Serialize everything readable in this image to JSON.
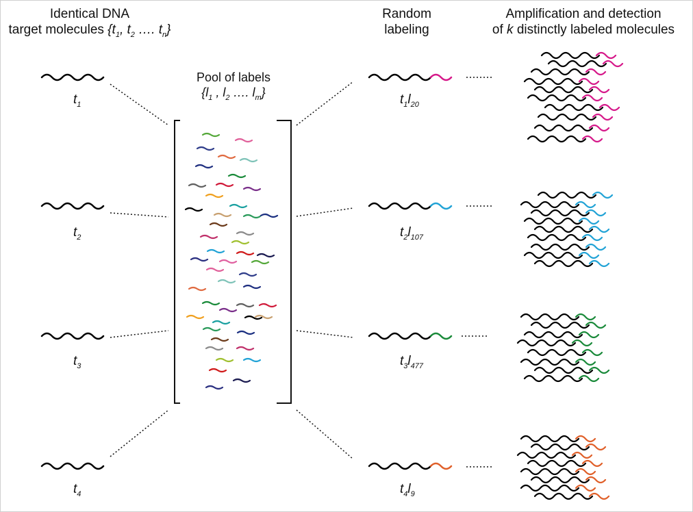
{
  "headers": {
    "col1_line1": "Identical DNA",
    "col1_line2_prefix": "target molecules ",
    "col2_line1": "Random",
    "col2_line2": "labeling",
    "col3_line1": "Amplification and detection",
    "col3_line2_prefix": "of ",
    "col3_line2_k": "k",
    "col3_line2_suffix": " distinctly labeled molecules"
  },
  "set_notation": {
    "t_set": {
      "open": "{",
      "sym": "t",
      "s1": "1",
      "s2": "2",
      "sn": "n",
      "sep": ", ",
      "dots": " …. ",
      "close": "}"
    },
    "l_set": {
      "open": "{",
      "sym": "l",
      "s1": "1",
      "s2": "2",
      "sm": "m",
      "sep": " , ",
      "dots": " …. ",
      "close": "}"
    }
  },
  "pool": {
    "title": "Pool of labels"
  },
  "targets": [
    {
      "sym": "t",
      "sub": "1"
    },
    {
      "sym": "t",
      "sub": "2"
    },
    {
      "sym": "t",
      "sub": "3"
    },
    {
      "sym": "t",
      "sub": "4"
    }
  ],
  "labeled": [
    {
      "t": "t",
      "t_sub": "1",
      "l": "l",
      "l_sub": "20",
      "color": "#d6198a"
    },
    {
      "t": "t",
      "t_sub": "2",
      "l": "l",
      "l_sub": "107",
      "color": "#22a3d6"
    },
    {
      "t": "t",
      "t_sub": "3",
      "l": "l",
      "l_sub": "477",
      "color": "#1a8a3a"
    },
    {
      "t": "t",
      "t_sub": "4",
      "l": "l",
      "l_sub": "9",
      "color": "#e0602a"
    }
  ],
  "pool_colors": [
    "#55a83a",
    "#e0609a",
    "#2f3d8a",
    "#e06a40",
    "#7fc3b8",
    "#1f2f80",
    "#1a8a3a",
    "#606060",
    "#d01a3a",
    "#7a2f8a",
    "#f0a020",
    "#1aa0a0",
    "#000000",
    "#c8a070",
    "#2a9a5a",
    "#1a2f80",
    "#6b3a1a",
    "#8a8a8a",
    "#c0306a",
    "#a0c030",
    "#22a3d6",
    "#d01a1a",
    "#1a1a50",
    "#2a2f80",
    "#e060a0"
  ]
}
